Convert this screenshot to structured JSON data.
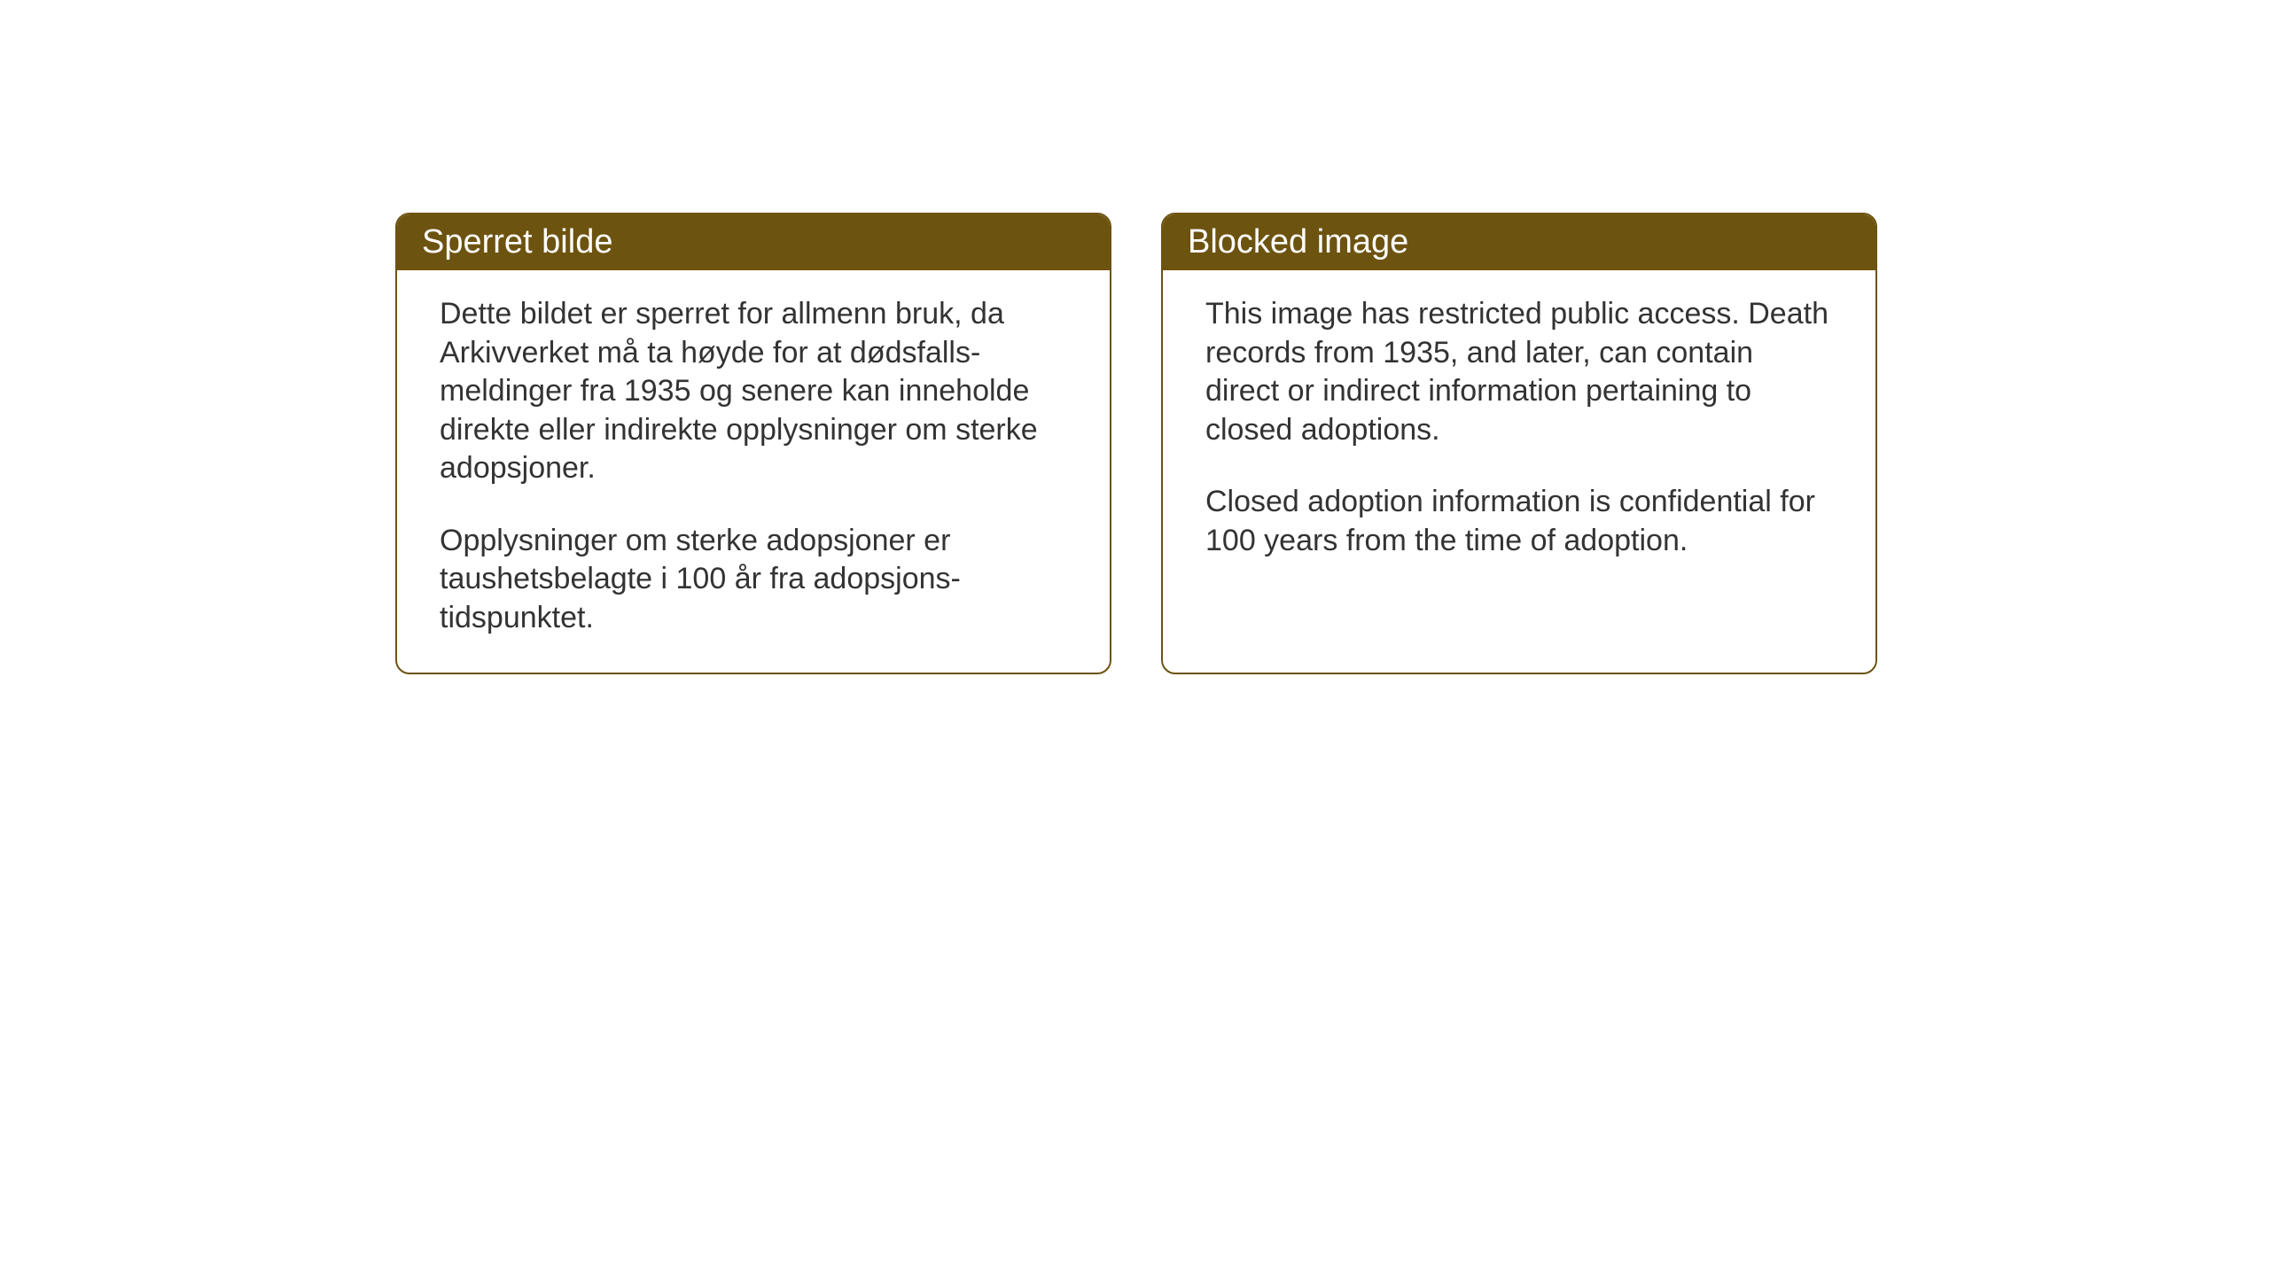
{
  "layout": {
    "background_color": "#ffffff",
    "card_border_color": "#6d5310",
    "card_header_bg": "#6d5310",
    "card_header_text_color": "#ffffff",
    "card_body_text_color": "#333333",
    "card_border_radius": 16,
    "header_font_size": 38,
    "body_font_size": 34
  },
  "cards": {
    "norwegian": {
      "title": "Sperret bilde",
      "paragraph1": "Dette bildet er sperret for allmenn bruk, da Arkivverket må ta høyde for at dødsfalls-meldinger fra 1935 og senere kan inneholde direkte eller indirekte opplysninger om sterke adopsjoner.",
      "paragraph2": "Opplysninger om sterke adopsjoner er taushetsbelagte i 100 år fra adopsjons-tidspunktet."
    },
    "english": {
      "title": "Blocked image",
      "paragraph1": "This image has restricted public access. Death records from 1935, and later, can contain direct or indirect information pertaining to closed adoptions.",
      "paragraph2": "Closed adoption information is confidential for 100 years from the time of adoption."
    }
  }
}
